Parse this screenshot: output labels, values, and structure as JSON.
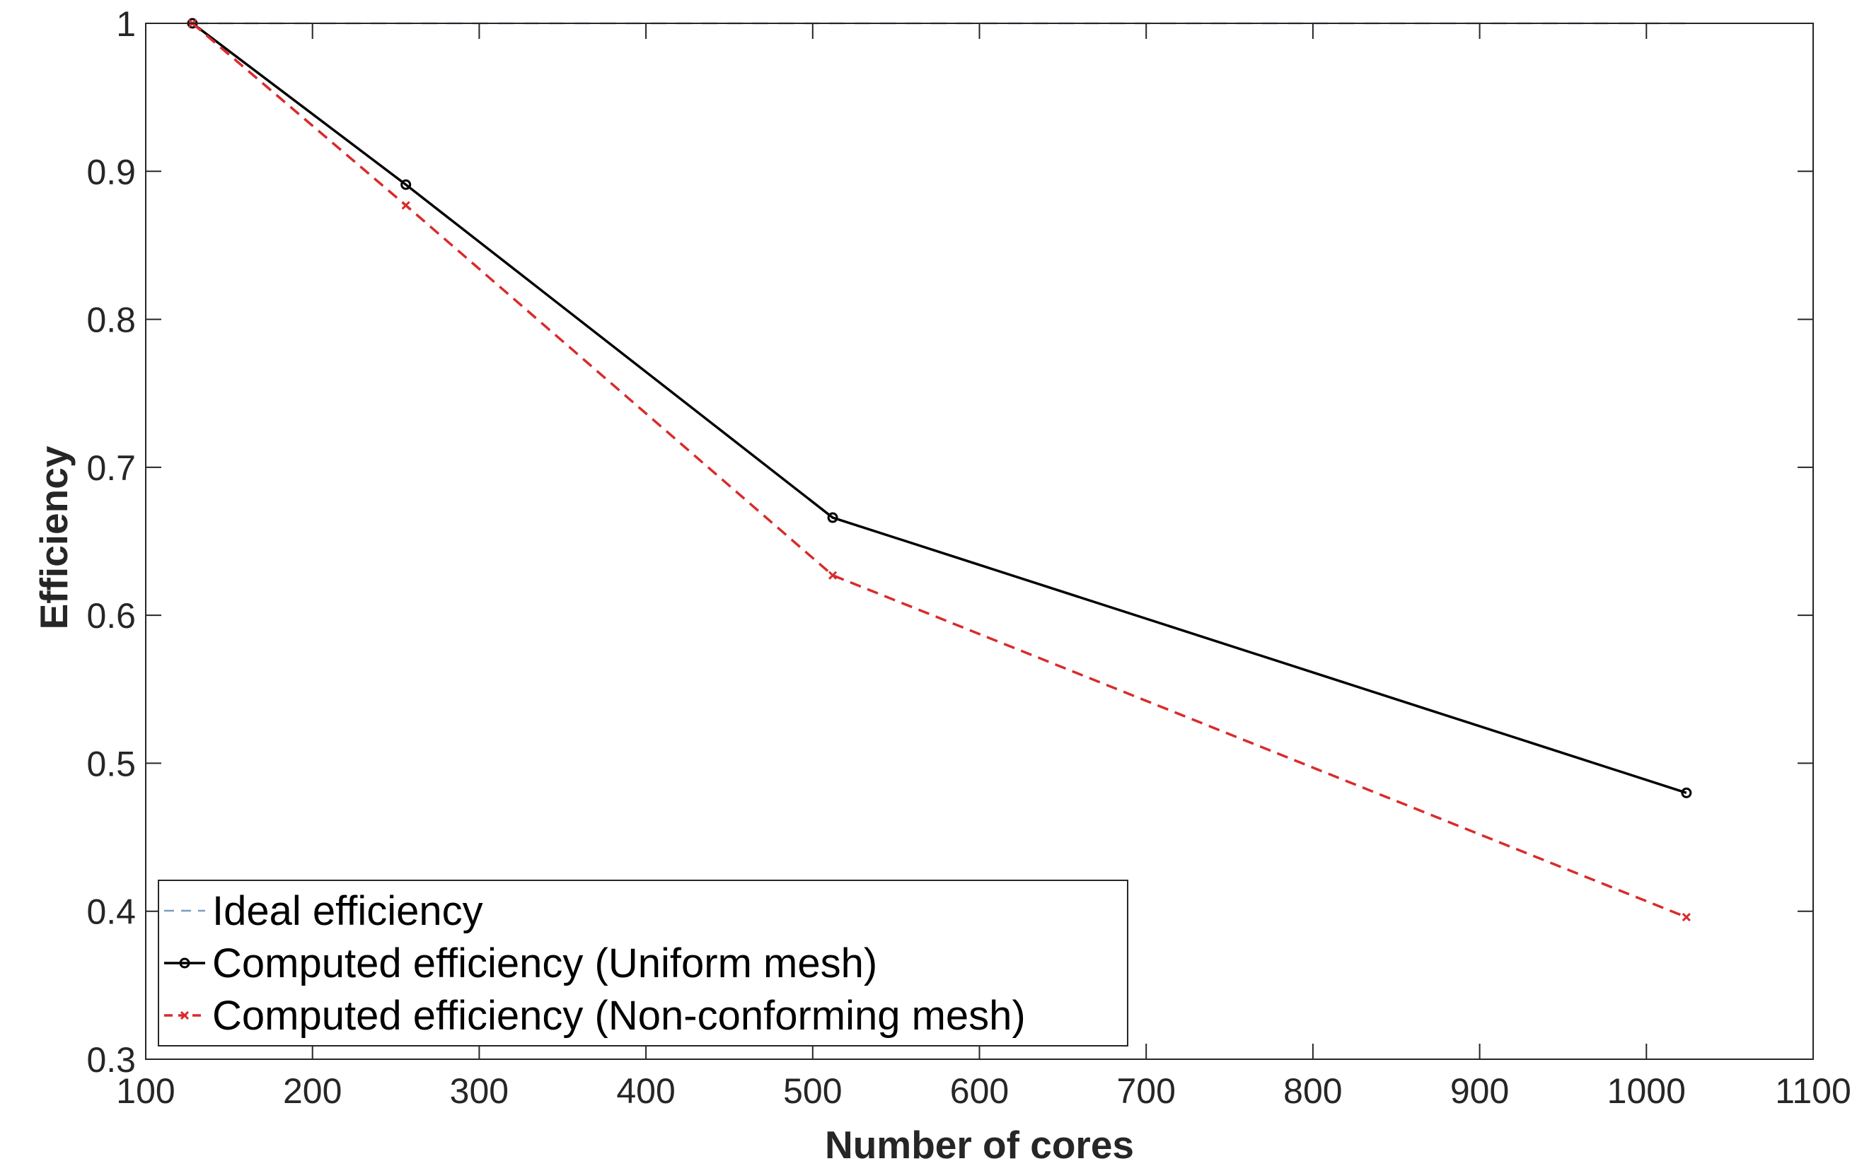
{
  "chart_data": {
    "type": "line",
    "title": "",
    "xlabel": "Number of cores",
    "ylabel": "Efficiency",
    "xlim": [
      100,
      1100
    ],
    "ylim": [
      0.3,
      1
    ],
    "xticks": [
      "100",
      "200",
      "300",
      "400",
      "500",
      "600",
      "700",
      "800",
      "900",
      "1000",
      "1100"
    ],
    "yticks": [
      "0.3",
      "0.4",
      "0.5",
      "0.6",
      "0.7",
      "0.8",
      "0.9",
      "1"
    ],
    "grid": false,
    "legend_position": "bottom-left",
    "series": [
      {
        "name": "Ideal efficiency",
        "color": "#7a9cc0",
        "line_style": "dashed",
        "marker": "none",
        "x": [
          128,
          1024
        ],
        "y": [
          1,
          1
        ]
      },
      {
        "name": "Computed efficiency (Uniform mesh)",
        "color": "#000000",
        "line_style": "solid",
        "marker": "circle",
        "x": [
          128,
          256,
          512,
          1024
        ],
        "y": [
          1.0,
          0.891,
          0.666,
          0.48
        ]
      },
      {
        "name": "Computed efficiency (Non-conforming mesh)",
        "color": "#d92b2b",
        "line_style": "dashed",
        "marker": "x",
        "x": [
          128,
          256,
          512,
          1024
        ],
        "y": [
          1.0,
          0.877,
          0.627,
          0.396
        ]
      }
    ]
  }
}
